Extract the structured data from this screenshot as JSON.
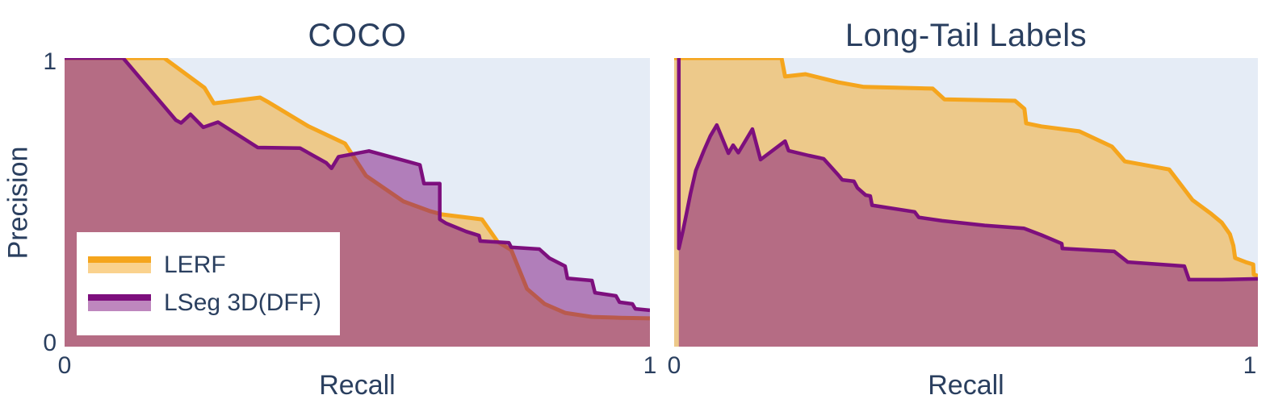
{
  "colors": {
    "background": "#ffffff",
    "plot_background": "#E5ECF6",
    "text": "#2a3f5f",
    "lerf_color": "#F5A51D",
    "lseg_color": "#7D0F7D",
    "overlap_observed": "#B5627B"
  },
  "legend": {
    "fill_opacity": 0.5,
    "items": [
      {
        "label": "LERF",
        "color": "#F5A51D"
      },
      {
        "label": "LSeg 3D(DFF)",
        "color": "#7D0F7D"
      }
    ]
  },
  "chart_data": [
    {
      "type": "area",
      "title": "COCO",
      "xlabel": "Recall",
      "ylabel": "Precision",
      "xlim": [
        0,
        1
      ],
      "ylim": [
        0,
        1
      ],
      "x_ticks": [
        "0",
        "1"
      ],
      "y_ticks": [
        "0",
        "1"
      ],
      "grid": false,
      "legend_position": "bottom-left",
      "background": "#E5ECF6",
      "series": [
        {
          "name": "LERF",
          "color": "#F5A51D",
          "line_width": 5,
          "fill_opacity": 0.5,
          "points": [
            [
              0,
              1
            ],
            [
              0.17,
              1
            ],
            [
              0.239,
              0.897
            ],
            [
              0.255,
              0.843
            ],
            [
              0.334,
              0.863
            ],
            [
              0.349,
              0.846
            ],
            [
              0.417,
              0.763
            ],
            [
              0.479,
              0.704
            ],
            [
              0.515,
              0.592
            ],
            [
              0.579,
              0.503
            ],
            [
              0.625,
              0.469
            ],
            [
              0.645,
              0.458
            ],
            [
              0.713,
              0.441
            ],
            [
              0.74,
              0.363
            ],
            [
              0.763,
              0.335
            ],
            [
              0.79,
              0.2
            ],
            [
              0.82,
              0.148
            ],
            [
              0.855,
              0.117
            ],
            [
              0.901,
              0.103
            ],
            [
              0.95,
              0.1
            ],
            [
              1,
              0.098
            ]
          ]
        },
        {
          "name": "LSeg 3D(DFF)",
          "color": "#7D0F7D",
          "line_width": 4.5,
          "fill_opacity": 0.5,
          "points": [
            [
              0,
              1
            ],
            [
              0.1,
              1
            ],
            [
              0.19,
              0.785
            ],
            [
              0.199,
              0.775
            ],
            [
              0.215,
              0.805
            ],
            [
              0.237,
              0.76
            ],
            [
              0.262,
              0.778
            ],
            [
              0.33,
              0.69
            ],
            [
              0.402,
              0.688
            ],
            [
              0.447,
              0.637
            ],
            [
              0.456,
              0.618
            ],
            [
              0.468,
              0.658
            ],
            [
              0.52,
              0.678
            ],
            [
              0.607,
              0.63
            ],
            [
              0.614,
              0.565
            ],
            [
              0.641,
              0.565
            ],
            [
              0.641,
              0.441
            ],
            [
              0.652,
              0.427
            ],
            [
              0.686,
              0.399
            ],
            [
              0.708,
              0.385
            ],
            [
              0.71,
              0.366
            ],
            [
              0.759,
              0.36
            ],
            [
              0.763,
              0.344
            ],
            [
              0.811,
              0.338
            ],
            [
              0.828,
              0.307
            ],
            [
              0.855,
              0.279
            ],
            [
              0.859,
              0.237
            ],
            [
              0.901,
              0.229
            ],
            [
              0.906,
              0.187
            ],
            [
              0.942,
              0.176
            ],
            [
              0.948,
              0.154
            ],
            [
              0.97,
              0.148
            ],
            [
              0.975,
              0.131
            ],
            [
              1,
              0.126
            ]
          ]
        }
      ]
    },
    {
      "type": "area",
      "title": "Long-Tail Labels",
      "xlabel": "Recall",
      "ylabel": "Precision",
      "xlim": [
        0,
        1
      ],
      "ylim": [
        0,
        1
      ],
      "x_ticks": [
        "0",
        "1"
      ],
      "y_ticks": [
        "0",
        "1"
      ],
      "grid": false,
      "legend_position": "none",
      "background": "#E5ECF6",
      "series": [
        {
          "name": "LERF",
          "color": "#F5A51D",
          "line_width": 5,
          "fill_opacity": 0.5,
          "points": [
            [
              0,
              1
            ],
            [
              0.184,
              1
            ],
            [
              0.19,
              0.936
            ],
            [
              0.225,
              0.944
            ],
            [
              0.281,
              0.916
            ],
            [
              0.325,
              0.9
            ],
            [
              0.443,
              0.894
            ],
            [
              0.463,
              0.857
            ],
            [
              0.584,
              0.852
            ],
            [
              0.6,
              0.824
            ],
            [
              0.603,
              0.774
            ],
            [
              0.629,
              0.763
            ],
            [
              0.694,
              0.746
            ],
            [
              0.75,
              0.693
            ],
            [
              0.772,
              0.642
            ],
            [
              0.848,
              0.614
            ],
            [
              0.867,
              0.564
            ],
            [
              0.888,
              0.508
            ],
            [
              0.92,
              0.46
            ],
            [
              0.938,
              0.43
            ],
            [
              0.952,
              0.39
            ],
            [
              0.958,
              0.35
            ],
            [
              0.961,
              0.307
            ],
            [
              0.979,
              0.293
            ],
            [
              0.992,
              0.285
            ],
            [
              0.993,
              0.25
            ],
            [
              1,
              0.245
            ]
          ]
        },
        {
          "name": "LSeg 3D(DFF)",
          "color": "#7D0F7D",
          "line_width": 4.5,
          "fill_opacity": 0.5,
          "points": [
            [
              0.008,
              1
            ],
            [
              0.008,
              0.34
            ],
            [
              0.015,
              0.4
            ],
            [
              0.021,
              0.46
            ],
            [
              0.028,
              0.53
            ],
            [
              0.037,
              0.61
            ],
            [
              0.051,
              0.68
            ],
            [
              0.062,
              0.73
            ],
            [
              0.073,
              0.768
            ],
            [
              0.093,
              0.67
            ],
            [
              0.101,
              0.698
            ],
            [
              0.11,
              0.672
            ],
            [
              0.134,
              0.754
            ],
            [
              0.148,
              0.648
            ],
            [
              0.19,
              0.712
            ],
            [
              0.196,
              0.679
            ],
            [
              0.231,
              0.662
            ],
            [
              0.256,
              0.651
            ],
            [
              0.281,
              0.595
            ],
            [
              0.288,
              0.578
            ],
            [
              0.308,
              0.573
            ],
            [
              0.314,
              0.55
            ],
            [
              0.328,
              0.525
            ],
            [
              0.336,
              0.522
            ],
            [
              0.339,
              0.49
            ],
            [
              0.412,
              0.467
            ],
            [
              0.419,
              0.448
            ],
            [
              0.459,
              0.436
            ],
            [
              0.532,
              0.42
            ],
            [
              0.599,
              0.41
            ],
            [
              0.629,
              0.387
            ],
            [
              0.664,
              0.357
            ],
            [
              0.665,
              0.34
            ],
            [
              0.754,
              0.33
            ],
            [
              0.777,
              0.293
            ],
            [
              0.874,
              0.279
            ],
            [
              0.882,
              0.232
            ],
            [
              0.938,
              0.232
            ],
            [
              1,
              0.235
            ]
          ]
        }
      ]
    }
  ]
}
